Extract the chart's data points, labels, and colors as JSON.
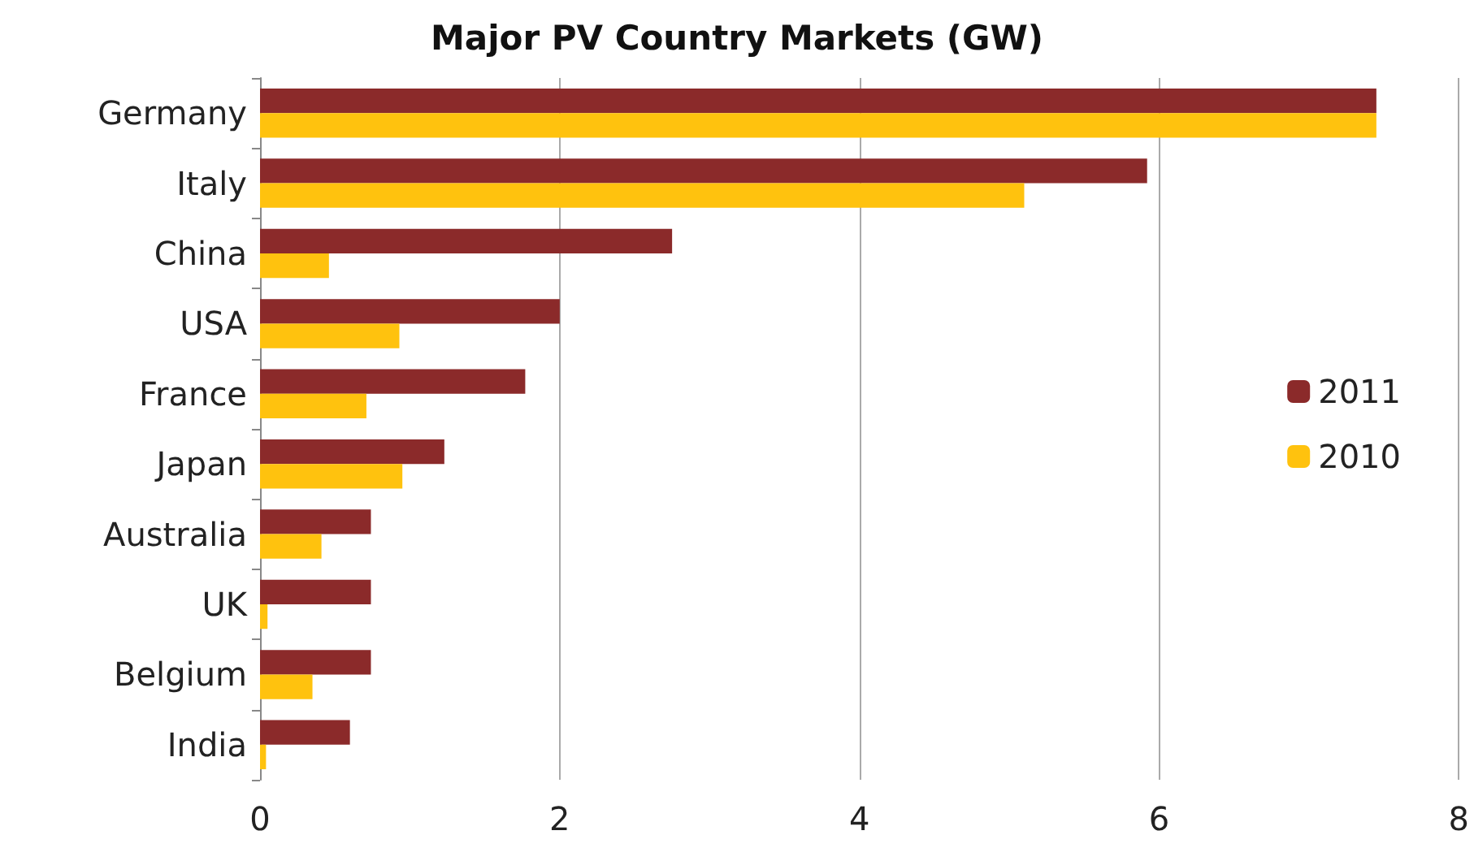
{
  "chart_data": {
    "type": "bar",
    "orientation": "horizontal",
    "title": "Major PV Country Markets (GW)",
    "categories": [
      "Germany",
      "Italy",
      "China",
      "USA",
      "France",
      "Japan",
      "Australia",
      "UK",
      "Belgium",
      "India"
    ],
    "series": [
      {
        "name": "2011",
        "color": "#8b2a2a",
        "values": [
          7.45,
          5.92,
          2.75,
          2.0,
          1.77,
          1.23,
          0.74,
          0.74,
          0.74,
          0.6
        ]
      },
      {
        "name": "2010",
        "color": "#ffc20e",
        "values": [
          7.45,
          5.1,
          0.46,
          0.93,
          0.71,
          0.95,
          0.41,
          0.05,
          0.35,
          0.04
        ]
      }
    ],
    "xlim": [
      0,
      8
    ],
    "xticks": [
      0,
      2,
      4,
      6,
      8
    ],
    "grid": "x",
    "legend": "right"
  }
}
